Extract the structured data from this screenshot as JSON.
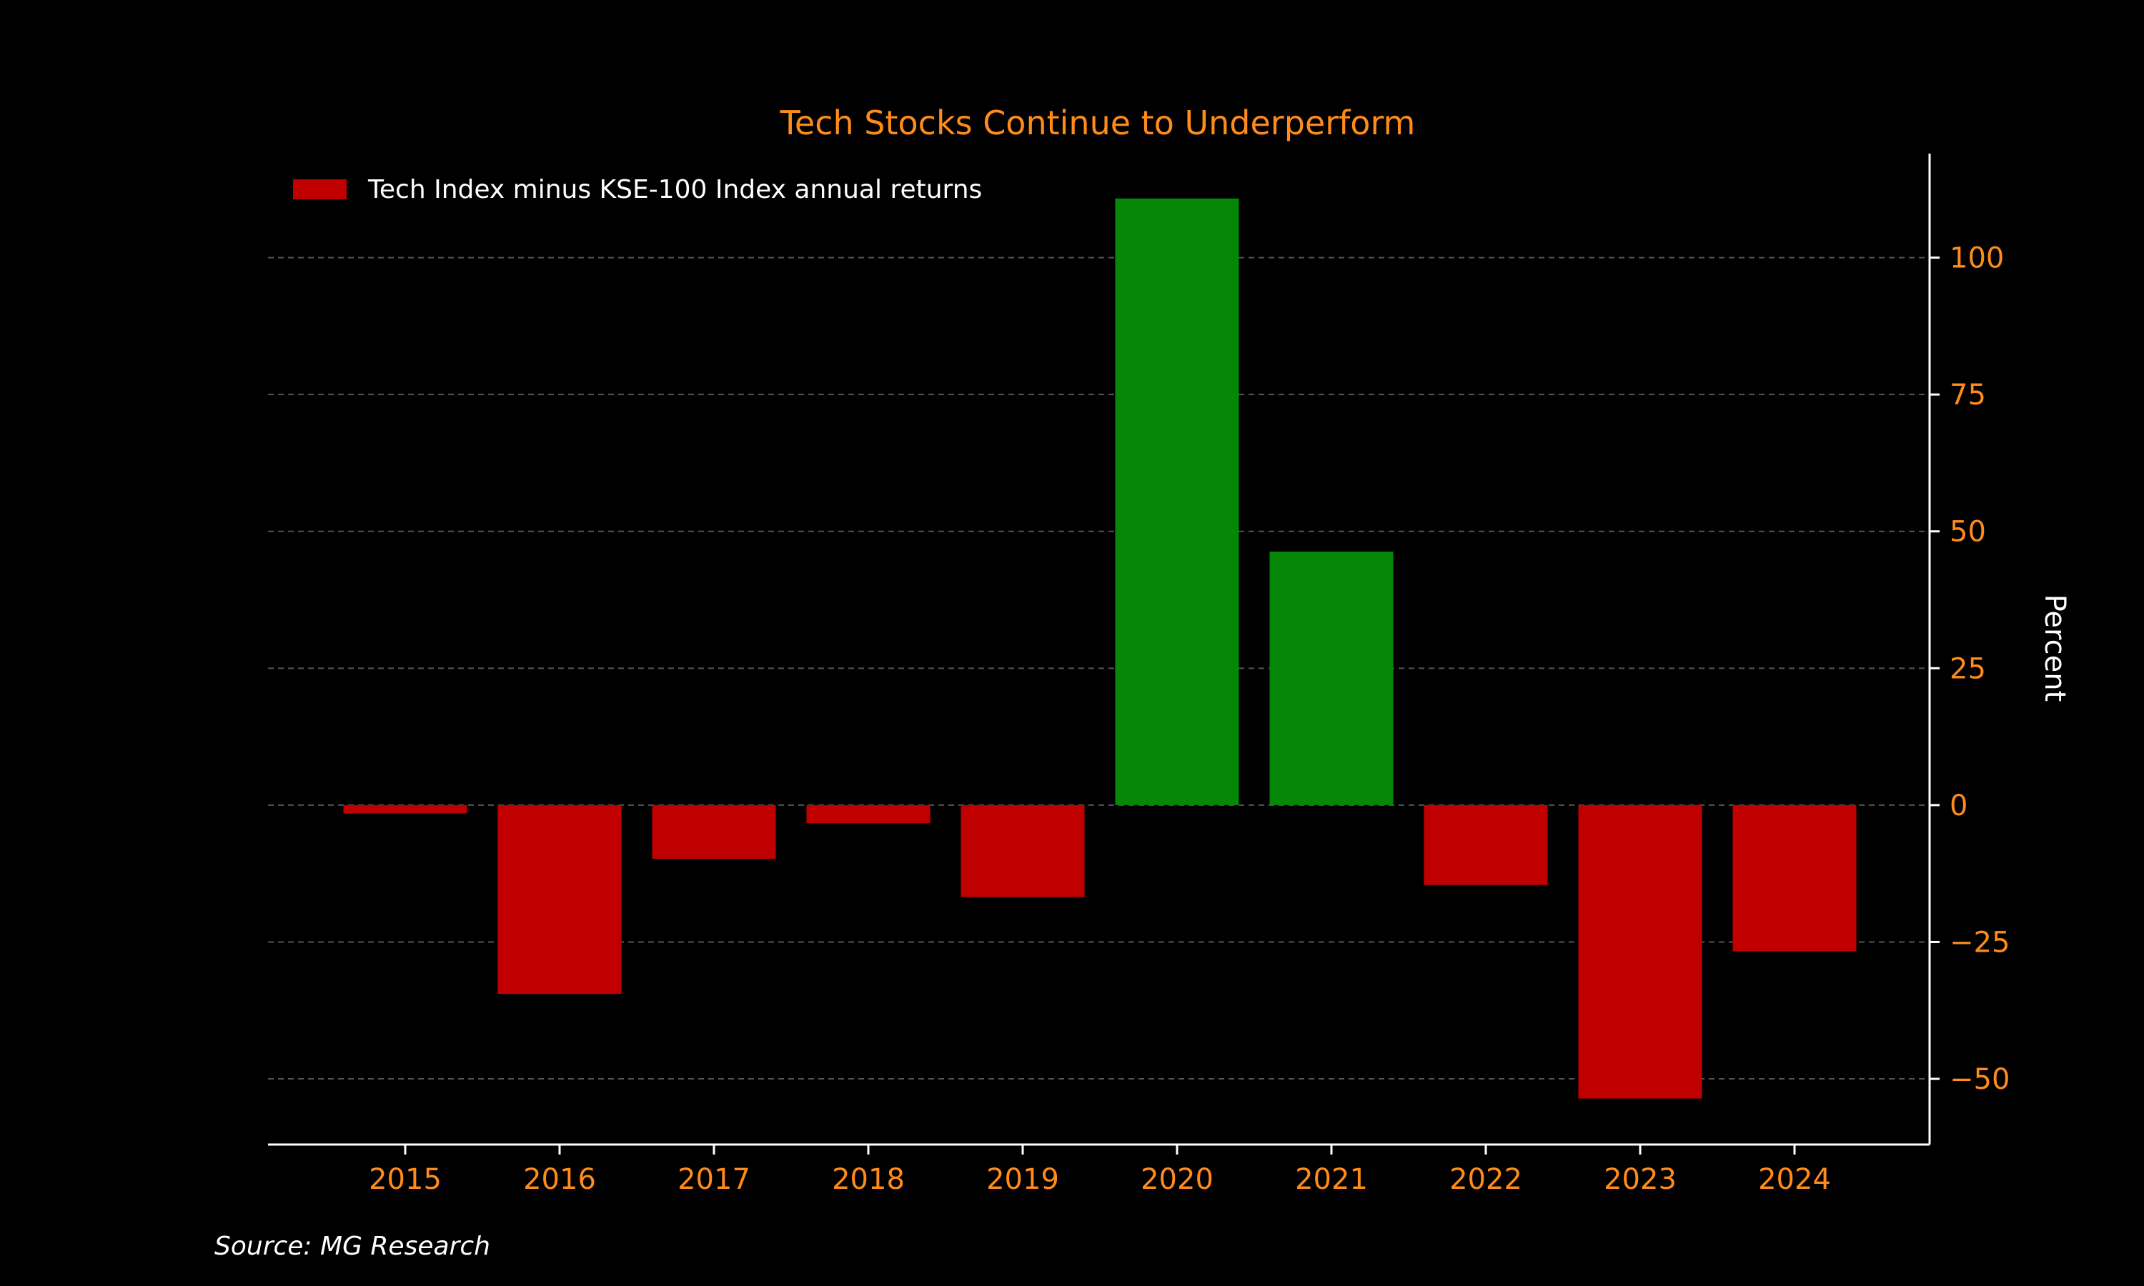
{
  "chart_data": {
    "type": "bar",
    "title": "Tech Stocks Continue to Underperform",
    "ylabel": "Percent",
    "xlabel": "",
    "categories": [
      "2015",
      "2016",
      "2017",
      "2018",
      "2019",
      "2020",
      "2021",
      "2022",
      "2023",
      "2024"
    ],
    "series": [
      {
        "name": "Tech Index minus KSE-100 Index annual returns",
        "values": [
          -1.5,
          -34.5,
          -9.8,
          -3.3,
          -16.8,
          110.8,
          46.3,
          -14.6,
          -53.6,
          -26.7
        ]
      }
    ],
    "ylim": [
      -62,
      119
    ],
    "yticks": [
      -50,
      -25,
      0,
      25,
      50,
      75,
      100
    ],
    "ytick_labels": [
      "−50",
      "−25",
      "0",
      "25",
      "50",
      "75",
      "100"
    ],
    "y_axis_side": "right",
    "grid": true,
    "legend_position": "top-left",
    "colors": {
      "positive": "#078707",
      "negative": "#c00000",
      "title": "#ff8c1a",
      "ticks": "#ff8c1a",
      "background": "#000000",
      "axis": "#ffffff",
      "grid": "#555555"
    },
    "source": "Source: MG Research"
  }
}
